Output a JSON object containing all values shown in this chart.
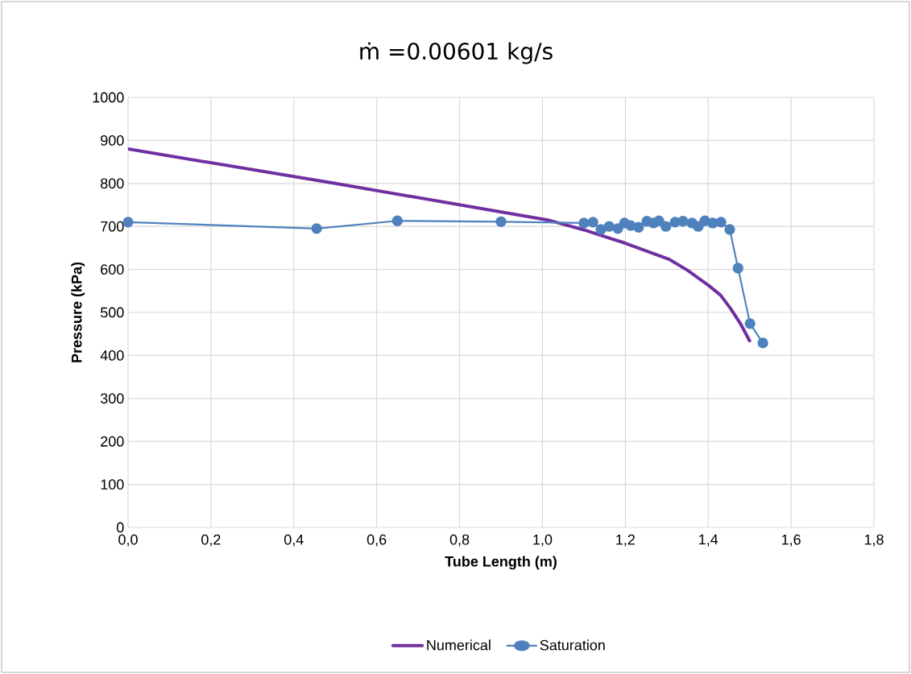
{
  "chart_data": {
    "type": "line",
    "title": "ṁ =0.00601 kg/s",
    "xlabel": "Tube Length (m)",
    "ylabel": "Pressure (kPa)",
    "xlim": [
      0,
      1.8
    ],
    "ylim": [
      0,
      1000
    ],
    "xticks": [
      {
        "value": 0,
        "label": "0,0"
      },
      {
        "value": 0.2,
        "label": "0,2"
      },
      {
        "value": 0.4,
        "label": "0,4"
      },
      {
        "value": 0.6,
        "label": "0,6"
      },
      {
        "value": 0.8,
        "label": "0,8"
      },
      {
        "value": 1.0,
        "label": "1,0"
      },
      {
        "value": 1.2,
        "label": "1,2"
      },
      {
        "value": 1.4,
        "label": "1,4"
      },
      {
        "value": 1.6,
        "label": "1,6"
      },
      {
        "value": 1.8,
        "label": "1,8"
      }
    ],
    "yticks": [
      0,
      100,
      200,
      300,
      400,
      500,
      600,
      700,
      800,
      900,
      1000
    ],
    "grid": true,
    "legend": "bottom",
    "line_style": "solid",
    "series": [
      {
        "name": "Numerical",
        "color": "#7030a0",
        "marker": "none",
        "x": [
          0,
          0.5,
          1.013,
          1.1,
          1.2,
          1.305,
          1.35,
          1.402,
          1.43,
          1.454,
          1.479,
          1.5
        ],
        "values": [
          880,
          800,
          715,
          692,
          661,
          624,
          598,
          562,
          540,
          509,
          472,
          434
        ]
      },
      {
        "name": "Saturation",
        "color": "#4f81bd",
        "marker": "circle",
        "x": [
          0,
          0.455,
          0.65,
          0.9,
          1.1,
          1.122,
          1.141,
          1.161,
          1.182,
          1.198,
          1.213,
          1.232,
          1.252,
          1.268,
          1.281,
          1.298,
          1.32,
          1.339,
          1.361,
          1.376,
          1.392,
          1.411,
          1.431,
          1.452,
          1.472,
          1.501,
          1.532
        ],
        "values": [
          710,
          695,
          713,
          711,
          708,
          710,
          693,
          700,
          695,
          708,
          702,
          698,
          712,
          708,
          713,
          700,
          710,
          712,
          708,
          700,
          713,
          708,
          710,
          693,
          603,
          474,
          429
        ]
      }
    ]
  }
}
